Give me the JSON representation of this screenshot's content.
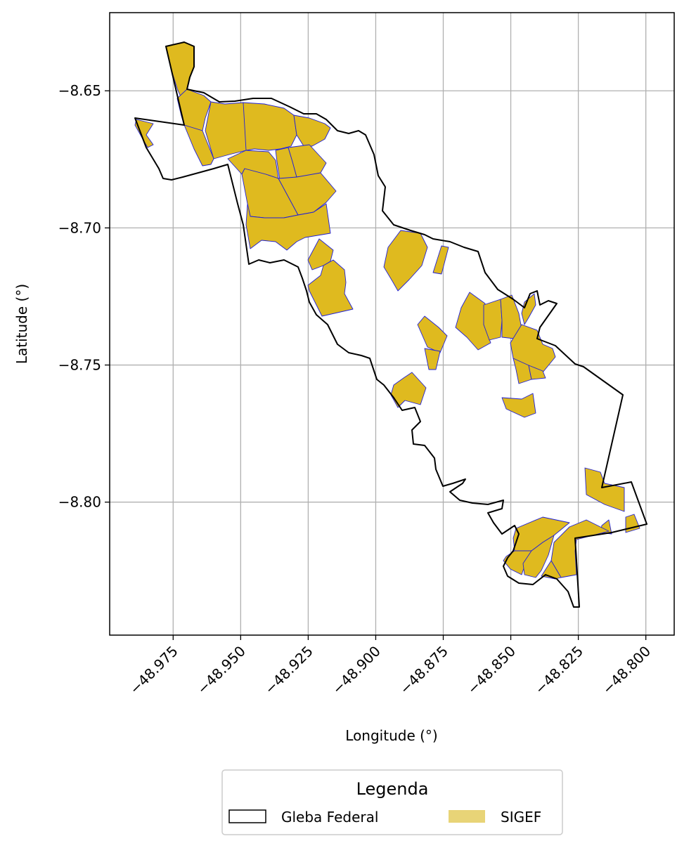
{
  "chart_data": {
    "type": "map",
    "xlabel": "Longitude (°)",
    "ylabel": "Latitude (°)",
    "xlim": [
      -48.9985,
      -48.7895
    ],
    "ylim": [
      -8.8485,
      -8.6215
    ],
    "x_ticks": [
      -48.975,
      -48.95,
      -48.925,
      -48.9,
      -48.875,
      -48.85,
      -48.825,
      -48.8
    ],
    "x_tick_labels": [
      "−48.975",
      "−48.950",
      "−48.925",
      "−48.900",
      "−48.875",
      "−48.850",
      "−48.825",
      "−48.800"
    ],
    "y_ticks": [
      -8.65,
      -8.7,
      -8.75,
      -8.8
    ],
    "y_tick_labels": [
      "−8.65",
      "−8.70",
      "−8.75",
      "−8.80"
    ],
    "grid": true,
    "legend": {
      "title": "Legenda",
      "placement": "bottom-center",
      "entries": [
        {
          "label": "Gleba Federal",
          "style": "outline",
          "color": "#000000"
        },
        {
          "label": "SIGEF",
          "style": "fill",
          "color": "#e8d477"
        }
      ]
    },
    "colors": {
      "parcel_fill": "#dfba1f",
      "parcel_edge": "#2020d8",
      "boundary": "#000000"
    }
  }
}
